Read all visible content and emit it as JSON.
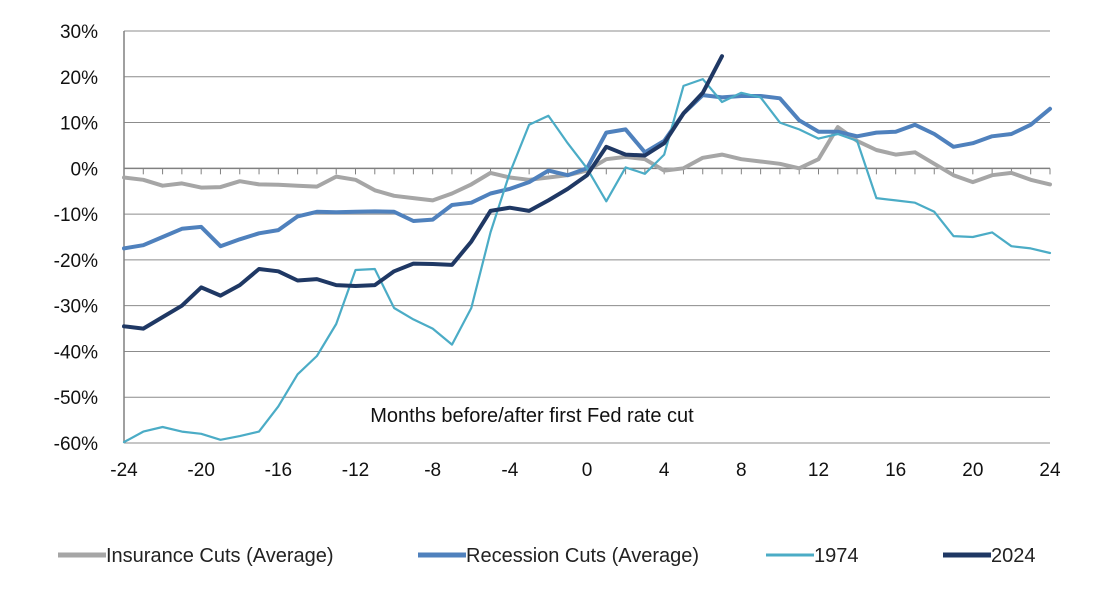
{
  "chart_data": {
    "type": "line",
    "title": "",
    "xlabel": "",
    "ylabel": "",
    "annotation": "Months before/after first Fed rate cut",
    "xlim": [
      -24,
      24
    ],
    "ylim": [
      -60,
      30
    ],
    "x_ticks": [
      -24,
      -20,
      -16,
      -12,
      -8,
      -4,
      0,
      4,
      8,
      12,
      16,
      20,
      24
    ],
    "x_tick_labels": [
      "-24",
      "-20",
      "-16",
      "-12",
      "-8",
      "-4",
      "0",
      "4",
      "8",
      "12",
      "16",
      "20",
      "24"
    ],
    "y_ticks": [
      -60,
      -50,
      -40,
      -30,
      -20,
      -10,
      0,
      10,
      20,
      30
    ],
    "y_tick_labels": [
      "-60%",
      "-50%",
      "-40%",
      "-30%",
      "-20%",
      "-10%",
      "0%",
      "10%",
      "20%",
      "30%"
    ],
    "grid": "horizontal",
    "legend_position": "bottom",
    "series": [
      {
        "name": "Insurance Cuts (Average)",
        "color": "#a6a6a6",
        "width": "thick",
        "x": [
          -24,
          -23,
          -22,
          -21,
          -20,
          -19,
          -18,
          -17,
          -16,
          -15,
          -14,
          -13,
          -12,
          -11,
          -10,
          -9,
          -8,
          -7,
          -6,
          -5,
          -4,
          -3,
          -2,
          -1,
          0,
          1,
          2,
          3,
          4,
          5,
          6,
          7,
          8,
          9,
          10,
          11,
          12,
          13,
          14,
          15,
          16,
          17,
          18,
          19,
          20,
          21,
          22,
          23,
          24
        ],
        "values": [
          -2,
          -2.5,
          -3.8,
          -3.3,
          -4.2,
          -4.1,
          -2.8,
          -3.5,
          -3.6,
          -3.8,
          -4,
          -1.8,
          -2.5,
          -4.8,
          -6,
          -6.5,
          -7,
          -5.5,
          -3.5,
          -1,
          -2,
          -2.5,
          -2,
          -1.5,
          -0.5,
          2,
          2.5,
          2,
          -0.5,
          0,
          2.3,
          3,
          2,
          1.5,
          1,
          0,
          2,
          9,
          6,
          4,
          3,
          3.5,
          1,
          -1.5,
          -3,
          -1.5,
          -1,
          -2.5,
          -3.5
        ]
      },
      {
        "name": "Recession Cuts (Average)",
        "color": "#4f81bd",
        "width": "thick",
        "x": [
          -24,
          -23,
          -22,
          -21,
          -20,
          -19,
          -18,
          -17,
          -16,
          -15,
          -14,
          -13,
          -12,
          -11,
          -10,
          -9,
          -8,
          -7,
          -6,
          -5,
          -4,
          -3,
          -2,
          -1,
          0,
          1,
          2,
          3,
          4,
          5,
          6,
          7,
          8,
          9,
          10,
          11,
          12,
          13,
          14,
          15,
          16,
          17,
          18,
          19,
          20,
          21,
          22,
          23,
          24
        ],
        "values": [
          -17.5,
          -16.8,
          -15,
          -13.2,
          -12.8,
          -17,
          -15.5,
          -14.2,
          -13.5,
          -10.5,
          -9.5,
          -9.6,
          -9.5,
          -9.4,
          -9.5,
          -11.5,
          -11.2,
          -8,
          -7.5,
          -5.5,
          -4.5,
          -3,
          -0.5,
          -1.5,
          0,
          7.8,
          8.5,
          3.5,
          6,
          12,
          16,
          15.5,
          15.8,
          15.8,
          15.3,
          10.5,
          8,
          8,
          7,
          7.8,
          8,
          9.5,
          7.5,
          4.7,
          5.5,
          7,
          7.5,
          9.5,
          13
        ]
      },
      {
        "name": "1974",
        "color": "#4bacc6",
        "width": "thin",
        "x": [
          -24,
          -23,
          -22,
          -21,
          -20,
          -19,
          -18,
          -17,
          -16,
          -15,
          -14,
          -13,
          -12,
          -11,
          -10,
          -9,
          -8,
          -7,
          -6,
          -5,
          -4,
          -3,
          -2,
          -1,
          0,
          1,
          2,
          3,
          4,
          5,
          6,
          7,
          8,
          9,
          10,
          11,
          12,
          13,
          14,
          15,
          16,
          17,
          18,
          19,
          20,
          21,
          22,
          23,
          24
        ],
        "values": [
          -59.8,
          -57.5,
          -56.5,
          -57.5,
          -58,
          -59.3,
          -58.5,
          -57.5,
          -52,
          -45,
          -41,
          -34,
          -22.2,
          -22,
          -30.5,
          -33,
          -35,
          -38.5,
          -30.5,
          -14,
          -1,
          9.5,
          11.5,
          5.5,
          0,
          -7.2,
          0.2,
          -1.2,
          3,
          18,
          19.5,
          14.5,
          16.5,
          15.5,
          10,
          8.5,
          6.5,
          7.5,
          6,
          -6.5,
          -7,
          -7.5,
          -9.5,
          -14.8,
          -15,
          -14,
          -17,
          -17.5,
          -18.5
        ]
      },
      {
        "name": "2024",
        "color": "#1f3864",
        "width": "thick",
        "x": [
          -24,
          -23,
          -22,
          -21,
          -20,
          -19,
          -18,
          -17,
          -16,
          -15,
          -14,
          -13,
          -12,
          -11,
          -10,
          -9,
          -8,
          -7,
          -6,
          -5,
          -4,
          -3,
          -2,
          -1,
          0,
          1,
          2,
          3,
          4,
          5,
          6,
          7
        ],
        "values": [
          -34.5,
          -35,
          -32.5,
          -30,
          -26,
          -27.8,
          -25.5,
          -22,
          -22.5,
          -24.5,
          -24.2,
          -25.5,
          -25.7,
          -25.5,
          -22.5,
          -20.8,
          -20.9,
          -21.1,
          -16,
          -9.3,
          -8.6,
          -9.3,
          -7,
          -4.5,
          -1.5,
          4.7,
          3,
          2.8,
          5.5,
          12,
          16.5,
          24.5
        ]
      }
    ]
  }
}
